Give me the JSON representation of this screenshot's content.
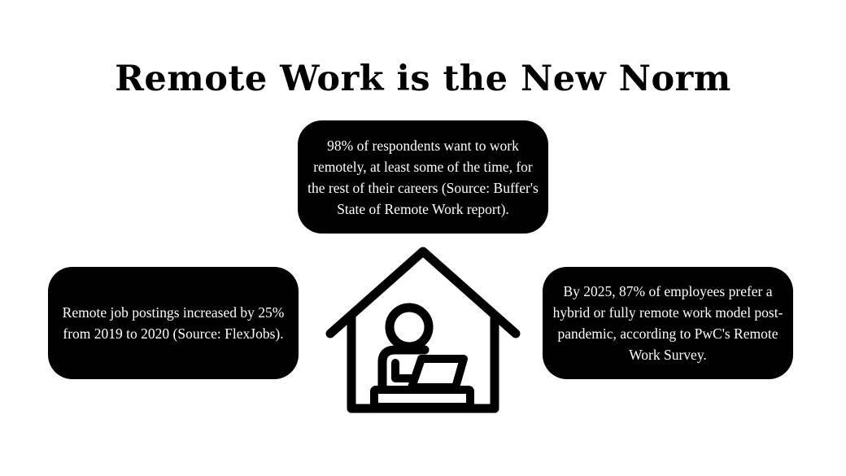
{
  "title": "Remote Work is the New Norm",
  "cards": {
    "top": "98% of respondents want to work remotely, at least some of the time, for the rest of their careers (Source: Buffer's State of Remote Work report).",
    "left": "Remote job postings increased by 25% from 2019 to 2020 (Source: FlexJobs).",
    "right": "By 2025, 87% of employees prefer a hybrid or fully remote work model post-pandemic, according to PwC's Remote Work Survey."
  },
  "icons": {
    "center": "house-with-person-at-laptop-icon"
  },
  "colors": {
    "background": "#ffffff",
    "card": "#000000",
    "card_text": "#ffffff",
    "title": "#000000"
  }
}
